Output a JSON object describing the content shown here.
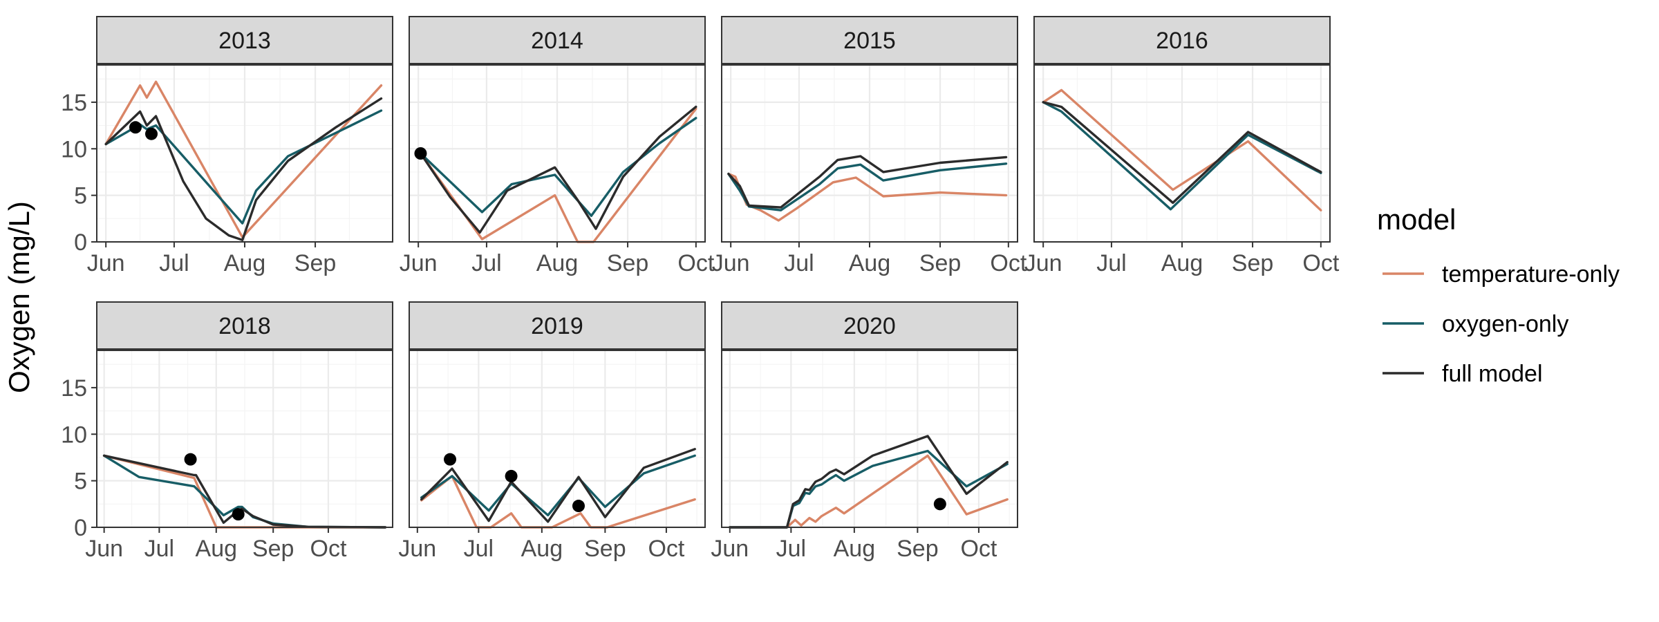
{
  "chart_data": {
    "type": "line",
    "y_axis_label": "Oxygen (mg/L)",
    "ylim": [
      0,
      19
    ],
    "y_ticks": [
      0,
      5,
      10,
      15
    ],
    "legend": {
      "title": "model",
      "position": "right"
    },
    "colors": {
      "temperature-only": "#d98566",
      "oxygen-only": "#175d66",
      "full model": "#2b2b2b",
      "observed": "#000000"
    },
    "series_names": [
      "temperature-only",
      "oxygen-only",
      "full model"
    ],
    "panels": [
      {
        "title": "2013",
        "xlim": [
          "2013-05-28",
          "2013-10-05"
        ],
        "x_ticks": [
          {
            "date": "2013-06-01",
            "label": "Jun"
          },
          {
            "date": "2013-07-01",
            "label": "Jul"
          },
          {
            "date": "2013-08-01",
            "label": "Aug"
          },
          {
            "date": "2013-09-01",
            "label": "Sep"
          }
        ],
        "series": [
          {
            "name": "temperature-only",
            "x": [
              "2013-06-01",
              "2013-06-16",
              "2013-06-19",
              "2013-06-23",
              "2013-07-31",
              "2013-09-30"
            ],
            "y": [
              10.5,
              16.8,
              15.5,
              17.2,
              0.5,
              16.8
            ]
          },
          {
            "name": "oxygen-only",
            "x": [
              "2013-06-01",
              "2013-06-16",
              "2013-06-19",
              "2013-06-23",
              "2013-07-31",
              "2013-08-06",
              "2013-08-20",
              "2013-09-10",
              "2013-09-30"
            ],
            "y": [
              10.5,
              12.6,
              12.1,
              12.5,
              2.0,
              5.5,
              9.2,
              11.7,
              14.1
            ]
          },
          {
            "name": "full model",
            "x": [
              "2013-06-01",
              "2013-06-16",
              "2013-06-19",
              "2013-06-23",
              "2013-07-05",
              "2013-07-15",
              "2013-07-25",
              "2013-07-31",
              "2013-08-06",
              "2013-08-20",
              "2013-09-10",
              "2013-09-30"
            ],
            "y": [
              10.5,
              14.0,
              12.5,
              13.5,
              6.5,
              2.5,
              0.7,
              0.2,
              4.5,
              8.7,
              12.3,
              15.4
            ]
          }
        ],
        "observations": [
          {
            "x": "2013-06-14",
            "y": 12.3
          },
          {
            "x": "2013-06-21",
            "y": 11.6
          }
        ]
      },
      {
        "title": "2014",
        "xlim": [
          "2014-05-28",
          "2014-10-05"
        ],
        "x_ticks": [
          {
            "date": "2014-06-01",
            "label": "Jun"
          },
          {
            "date": "2014-07-01",
            "label": "Jul"
          },
          {
            "date": "2014-08-01",
            "label": "Aug"
          },
          {
            "date": "2014-09-01",
            "label": "Sep"
          },
          {
            "date": "2014-10-01",
            "label": "Oct"
          }
        ],
        "series": [
          {
            "name": "temperature-only",
            "x": [
              "2014-06-02",
              "2014-06-29",
              "2014-07-31",
              "2014-08-10",
              "2014-08-17",
              "2014-10-01"
            ],
            "y": [
              9.5,
              0.3,
              5.0,
              0.0,
              0.0,
              14.3
            ]
          },
          {
            "name": "oxygen-only",
            "x": [
              "2014-06-02",
              "2014-06-29",
              "2014-07-12",
              "2014-07-31",
              "2014-08-16",
              "2014-08-30",
              "2014-09-15",
              "2014-10-01"
            ],
            "y": [
              9.5,
              3.2,
              6.2,
              7.2,
              2.8,
              7.5,
              10.6,
              13.3
            ]
          },
          {
            "name": "full model",
            "x": [
              "2014-06-02",
              "2014-06-15",
              "2014-06-28",
              "2014-07-10",
              "2014-07-31",
              "2014-08-10",
              "2014-08-18",
              "2014-08-30",
              "2014-09-15",
              "2014-10-01"
            ],
            "y": [
              9.5,
              4.8,
              1.0,
              5.5,
              8.0,
              4.5,
              1.4,
              7.0,
              11.3,
              14.5
            ]
          }
        ],
        "observations": [
          {
            "x": "2014-06-02",
            "y": 9.5
          }
        ]
      },
      {
        "title": "2015",
        "xlim": [
          "2015-05-28",
          "2015-10-05"
        ],
        "x_ticks": [
          {
            "date": "2015-06-01",
            "label": "Jun"
          },
          {
            "date": "2015-07-01",
            "label": "Jul"
          },
          {
            "date": "2015-08-01",
            "label": "Aug"
          },
          {
            "date": "2015-09-01",
            "label": "Sep"
          },
          {
            "date": "2015-10-01",
            "label": "Oct"
          }
        ],
        "series": [
          {
            "name": "temperature-only",
            "x": [
              "2015-05-31",
              "2015-06-03",
              "2015-06-08",
              "2015-06-14",
              "2015-06-22",
              "2015-06-30",
              "2015-07-16",
              "2015-07-26",
              "2015-08-07",
              "2015-09-01",
              "2015-09-30"
            ],
            "y": [
              7.3,
              7.0,
              4.0,
              3.4,
              2.3,
              3.6,
              6.4,
              6.9,
              4.9,
              5.3,
              5.0
            ]
          },
          {
            "name": "oxygen-only",
            "x": [
              "2015-05-31",
              "2015-06-05",
              "2015-06-09",
              "2015-06-23",
              "2015-07-10",
              "2015-07-18",
              "2015-07-28",
              "2015-08-07",
              "2015-09-01",
              "2015-09-30"
            ],
            "y": [
              7.3,
              5.5,
              3.8,
              3.4,
              6.2,
              7.9,
              8.3,
              6.6,
              7.7,
              8.4
            ]
          },
          {
            "name": "full model",
            "x": [
              "2015-05-31",
              "2015-06-05",
              "2015-06-09",
              "2015-06-23",
              "2015-07-10",
              "2015-07-18",
              "2015-07-28",
              "2015-08-07",
              "2015-09-01",
              "2015-09-30"
            ],
            "y": [
              7.3,
              6.0,
              3.9,
              3.7,
              7.0,
              8.8,
              9.2,
              7.5,
              8.5,
              9.1
            ]
          }
        ],
        "observations": []
      },
      {
        "title": "2016",
        "xlim": [
          "2016-05-28",
          "2016-10-05"
        ],
        "x_ticks": [
          {
            "date": "2016-06-01",
            "label": "Jun"
          },
          {
            "date": "2016-07-01",
            "label": "Jul"
          },
          {
            "date": "2016-08-01",
            "label": "Aug"
          },
          {
            "date": "2016-09-01",
            "label": "Sep"
          },
          {
            "date": "2016-10-01",
            "label": "Oct"
          }
        ],
        "series": [
          {
            "name": "temperature-only",
            "x": [
              "2016-06-01",
              "2016-06-09",
              "2016-07-28",
              "2016-08-30",
              "2016-10-01"
            ],
            "y": [
              15.0,
              16.3,
              5.6,
              10.8,
              3.4
            ]
          },
          {
            "name": "oxygen-only",
            "x": [
              "2016-06-01",
              "2016-06-09",
              "2016-07-27",
              "2016-08-30",
              "2016-10-01"
            ],
            "y": [
              15.0,
              14.0,
              3.5,
              11.5,
              7.4
            ]
          },
          {
            "name": "full model",
            "x": [
              "2016-06-01",
              "2016-06-09",
              "2016-07-28",
              "2016-08-30",
              "2016-10-01"
            ],
            "y": [
              15.0,
              14.5,
              4.2,
              11.8,
              7.5
            ]
          }
        ],
        "observations": []
      },
      {
        "title": "2018",
        "xlim": [
          "2018-05-28",
          "2018-11-05"
        ],
        "x_ticks": [
          {
            "date": "2018-06-01",
            "label": "Jun"
          },
          {
            "date": "2018-07-01",
            "label": "Jul"
          },
          {
            "date": "2018-08-01",
            "label": "Aug"
          },
          {
            "date": "2018-09-01",
            "label": "Sep"
          },
          {
            "date": "2018-10-01",
            "label": "Oct"
          }
        ],
        "series": [
          {
            "name": "temperature-only",
            "x": [
              "2018-06-01",
              "2018-07-20",
              "2018-08-01",
              "2018-11-01"
            ],
            "y": [
              7.7,
              5.3,
              0.0,
              0.0
            ]
          },
          {
            "name": "oxygen-only",
            "x": [
              "2018-06-01",
              "2018-06-20",
              "2018-07-20",
              "2018-08-05",
              "2018-08-13",
              "2018-08-15",
              "2018-08-21",
              "2018-09-01",
              "2018-09-20",
              "2018-11-01"
            ],
            "y": [
              7.7,
              5.4,
              4.4,
              1.3,
              2.2,
              2.2,
              1.1,
              0.4,
              0.05,
              0.0
            ]
          },
          {
            "name": "full model",
            "x": [
              "2018-06-01",
              "2018-07-20",
              "2018-07-21",
              "2018-08-05",
              "2018-08-13",
              "2018-08-15",
              "2018-08-21",
              "2018-09-01",
              "2018-09-20",
              "2018-11-01"
            ],
            "y": [
              7.7,
              5.6,
              5.6,
              0.5,
              1.8,
              2.0,
              1.2,
              0.3,
              0.05,
              0.0
            ]
          }
        ],
        "observations": [
          {
            "x": "2018-07-18",
            "y": 7.3
          },
          {
            "x": "2018-08-13",
            "y": 1.4
          }
        ]
      },
      {
        "title": "2019",
        "xlim": [
          "2019-05-28",
          "2019-10-20"
        ],
        "x_ticks": [
          {
            "date": "2019-06-01",
            "label": "Jun"
          },
          {
            "date": "2019-07-01",
            "label": "Jul"
          },
          {
            "date": "2019-08-01",
            "label": "Aug"
          },
          {
            "date": "2019-09-01",
            "label": "Sep"
          },
          {
            "date": "2019-10-01",
            "label": "Oct"
          }
        ],
        "series": [
          {
            "name": "temperature-only",
            "x": [
              "2019-06-03",
              "2019-06-18",
              "2019-06-30",
              "2019-07-07",
              "2019-07-17",
              "2019-07-22",
              "2019-08-06",
              "2019-08-20",
              "2019-08-25",
              "2019-09-02",
              "2019-10-15"
            ],
            "y": [
              2.9,
              5.5,
              0.0,
              0.0,
              1.5,
              0.0,
              0.0,
              1.5,
              0.0,
              0.0,
              3.0
            ]
          },
          {
            "name": "oxygen-only",
            "x": [
              "2019-06-03",
              "2019-06-18",
              "2019-07-06",
              "2019-07-17",
              "2019-08-04",
              "2019-08-19",
              "2019-09-01",
              "2019-09-20",
              "2019-10-15"
            ],
            "y": [
              3.2,
              5.5,
              1.8,
              4.7,
              1.3,
              5.3,
              2.2,
              5.8,
              7.7
            ]
          },
          {
            "name": "full model",
            "x": [
              "2019-06-03",
              "2019-06-18",
              "2019-07-06",
              "2019-07-17",
              "2019-08-04",
              "2019-08-19",
              "2019-09-01",
              "2019-09-20",
              "2019-10-15"
            ],
            "y": [
              3.0,
              6.3,
              0.7,
              4.9,
              0.6,
              5.4,
              1.1,
              6.4,
              8.4
            ]
          }
        ],
        "observations": [
          {
            "x": "2019-06-17",
            "y": 7.3
          },
          {
            "x": "2019-07-17",
            "y": 5.5
          },
          {
            "x": "2019-08-19",
            "y": 2.3
          }
        ]
      },
      {
        "title": "2020",
        "xlim": [
          "2020-05-28",
          "2020-10-20"
        ],
        "x_ticks": [
          {
            "date": "2020-06-01",
            "label": "Jun"
          },
          {
            "date": "2020-07-01",
            "label": "Jul"
          },
          {
            "date": "2020-08-01",
            "label": "Aug"
          },
          {
            "date": "2020-09-01",
            "label": "Sep"
          },
          {
            "date": "2020-10-01",
            "label": "Oct"
          }
        ],
        "series": [
          {
            "name": "temperature-only",
            "x": [
              "2020-06-01",
              "2020-06-29",
              "2020-07-03",
              "2020-07-06",
              "2020-07-10",
              "2020-07-13",
              "2020-07-16",
              "2020-07-23",
              "2020-07-27",
              "2020-09-06",
              "2020-09-25",
              "2020-10-15"
            ],
            "y": [
              0.0,
              0.0,
              0.8,
              0.2,
              1.0,
              0.6,
              1.2,
              2.1,
              1.5,
              7.7,
              1.4,
              3.0
            ]
          },
          {
            "name": "oxygen-only",
            "x": [
              "2020-06-01",
              "2020-06-29",
              "2020-07-02",
              "2020-07-05",
              "2020-07-08",
              "2020-07-10",
              "2020-07-13",
              "2020-07-16",
              "2020-07-20",
              "2020-07-23",
              "2020-07-27",
              "2020-08-10",
              "2020-09-06",
              "2020-09-25",
              "2020-10-15"
            ],
            "y": [
              0.0,
              0.0,
              2.3,
              2.6,
              3.7,
              3.6,
              4.4,
              4.6,
              5.2,
              5.6,
              5.0,
              6.6,
              8.2,
              4.4,
              6.8
            ]
          },
          {
            "name": "full model",
            "x": [
              "2020-06-01",
              "2020-06-29",
              "2020-07-02",
              "2020-07-05",
              "2020-07-08",
              "2020-07-10",
              "2020-07-13",
              "2020-07-16",
              "2020-07-20",
              "2020-07-23",
              "2020-07-27",
              "2020-08-10",
              "2020-09-06",
              "2020-09-25",
              "2020-10-15"
            ],
            "y": [
              0.0,
              0.0,
              2.5,
              2.9,
              4.1,
              4.0,
              4.9,
              5.2,
              5.9,
              6.2,
              5.7,
              7.7,
              9.8,
              3.6,
              7.0
            ]
          }
        ],
        "observations": [
          {
            "x": "2020-09-12",
            "y": 2.5
          }
        ]
      }
    ]
  }
}
